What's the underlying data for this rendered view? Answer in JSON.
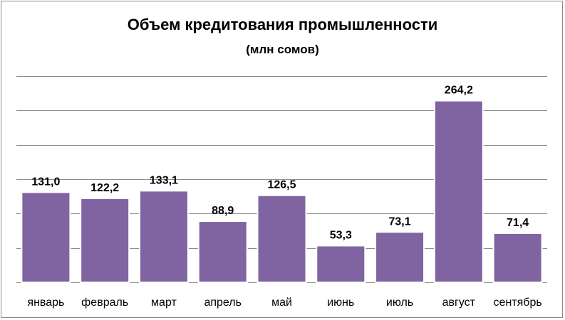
{
  "chart_data": {
    "type": "bar",
    "title": "Объем кредитования промышленности",
    "subtitle": "(млн сомов)",
    "categories": [
      "январь",
      "февраль",
      "март",
      "апрель",
      "май",
      "июнь",
      "июль",
      "август",
      "сентябрь"
    ],
    "values": [
      131.0,
      122.2,
      133.1,
      88.9,
      126.5,
      53.3,
      73.1,
      264.2,
      71.4
    ],
    "value_labels": [
      "131,0",
      "122,2",
      "133,1",
      "88,9",
      "126,5",
      "53,3",
      "73,1",
      "264,2",
      "71,4"
    ],
    "ylim": [
      0,
      300
    ],
    "y_gridlines": [
      50,
      100,
      150,
      200,
      250,
      300
    ],
    "grid": true,
    "legend": "none",
    "colors": {
      "bar": "#8064A2",
      "bar_border": "#ffffff",
      "grid": "#8c8c8c"
    }
  }
}
